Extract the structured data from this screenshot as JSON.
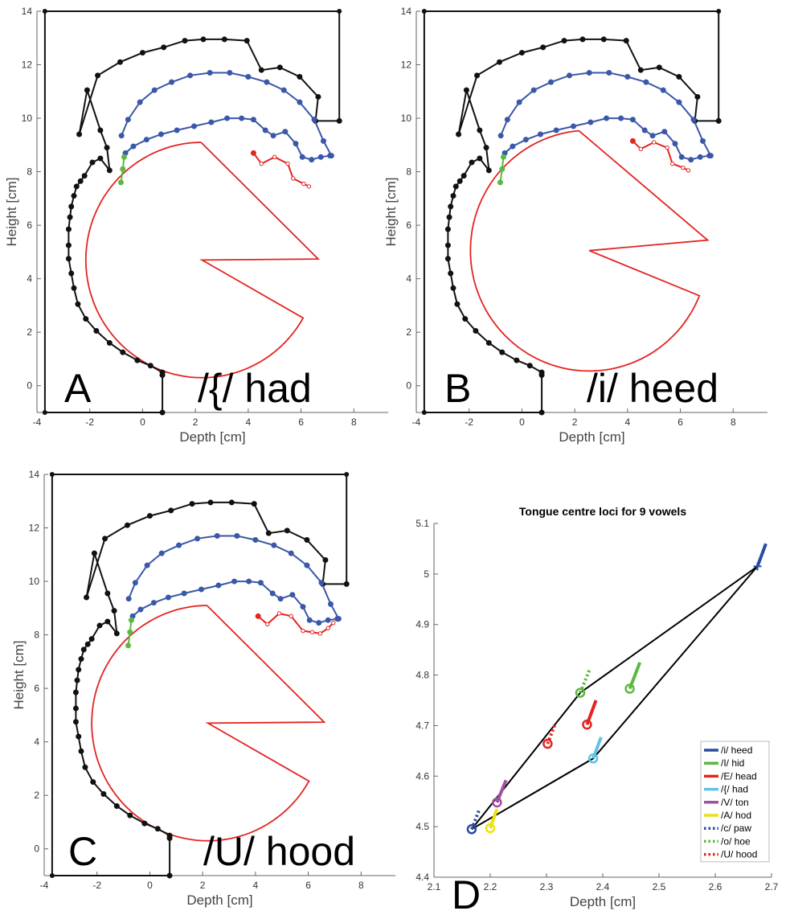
{
  "chart_data": [
    {
      "type": "line",
      "panel_letter": "A",
      "vowel_label": "/{/ had",
      "xlabel": "Depth [cm]",
      "ylabel": "Height [cm]",
      "xlim": [
        -4,
        9.3
      ],
      "ylim": [
        -1,
        14
      ],
      "xticks": [
        "-4",
        "-2",
        "0",
        "2",
        "4",
        "6",
        "8"
      ],
      "yticks": [
        "0",
        "2",
        "4",
        "6",
        "8",
        "10",
        "12",
        "14"
      ],
      "grid": false,
      "colors": {
        "outline": "#111111",
        "palate": "#3a57a8",
        "tongue": "#e32420",
        "larynx": "#5bb840"
      },
      "series": [
        {
          "role": "vocal-tract-outline",
          "color": "#111111",
          "markers": true,
          "x": [
            0.75,
            0.75,
            0.3,
            -0.2,
            -0.75,
            -1.25,
            -1.75,
            -2.15,
            -2.45,
            -2.6,
            -2.7,
            -2.8,
            -2.8,
            -2.8,
            -2.75,
            -2.7,
            -2.6,
            -2.5,
            -2.35,
            -2.2,
            -1.9,
            -1.6,
            -1.25,
            -1.35,
            -1.6,
            -2.1,
            -2.4,
            -1.7,
            -0.85,
            0,
            0.8,
            1.6,
            2.3,
            3.1,
            3.95,
            4.5,
            5.2,
            5.95,
            6.65,
            6.55,
            7.45,
            7.45,
            7.45,
            -3.7,
            -3.7,
            0.75,
            0.75
          ],
          "y": [
            0.4,
            0.5,
            0.75,
            0.95,
            1.25,
            1.6,
            2.05,
            2.5,
            3.05,
            3.65,
            4.2,
            4.75,
            5.25,
            5.85,
            6.3,
            6.7,
            7.1,
            7.45,
            7.65,
            7.85,
            8.35,
            8.5,
            8.05,
            8.9,
            9.55,
            11.05,
            9.4,
            11.6,
            12.1,
            12.45,
            12.65,
            12.9,
            12.95,
            12.95,
            12.9,
            11.8,
            11.9,
            11.55,
            10.8,
            9.9,
            9.9,
            9.9,
            14,
            14,
            -1,
            -1,
            0.4
          ]
        },
        {
          "role": "palate-upper",
          "color": "#3a57a8",
          "markers": true,
          "x": [
            -0.8,
            -0.55,
            -0.1,
            0.45,
            1.1,
            1.8,
            2.55,
            3.3,
            4,
            4.7,
            5.35,
            5.95,
            6.5,
            6.85,
            7.15
          ],
          "y": [
            9.35,
            9.95,
            10.6,
            11.05,
            11.35,
            11.6,
            11.7,
            11.7,
            11.55,
            11.35,
            11.05,
            10.6,
            9.95,
            9.15,
            8.6
          ]
        },
        {
          "role": "palate-lower",
          "color": "#3a57a8",
          "markers": true,
          "x": [
            -0.65,
            -0.35,
            0.15,
            0.7,
            1.3,
            1.95,
            2.6,
            3.2,
            3.75,
            4.2,
            4.65,
            4.95,
            5.4,
            5.8,
            6.05,
            6.4,
            6.75,
            7.1
          ],
          "y": [
            8.7,
            8.95,
            9.2,
            9.4,
            9.55,
            9.7,
            9.85,
            10,
            10,
            9.95,
            9.55,
            9.35,
            9.5,
            9.05,
            8.55,
            8.45,
            8.55,
            8.6
          ]
        },
        {
          "role": "tongue-lip",
          "color": "#e32420",
          "markers": true,
          "x": [
            4.2,
            4.5,
            5,
            5.5,
            5.7,
            6.1,
            6.3
          ],
          "y": [
            8.7,
            8.3,
            8.55,
            8.3,
            7.75,
            7.55,
            7.45
          ]
        },
        {
          "role": "larynx",
          "color": "#5bb840",
          "markers": true,
          "x": [
            -0.7,
            -0.75,
            -0.82
          ],
          "y": [
            8.55,
            8.1,
            7.6
          ]
        }
      ],
      "tongue_arc": {
        "center": [
          2.25,
          4.7
        ],
        "radius": 4.4,
        "start_deg": 0.5,
        "span_deg": 90,
        "sweep_deg": 240
      }
    },
    {
      "type": "line",
      "panel_letter": "B",
      "vowel_label": "/i/ heed",
      "xlabel": "Depth [cm]",
      "ylabel": "Height [cm]",
      "xlim": [
        -4,
        9.3
      ],
      "ylim": [
        -1,
        14
      ],
      "xticks": [
        "-4",
        "-2",
        "0",
        "2",
        "4",
        "6",
        "8"
      ],
      "yticks": [
        "0",
        "2",
        "4",
        "6",
        "8",
        "10",
        "12",
        "14"
      ],
      "grid": false,
      "series": [
        {
          "role": "vocal-tract-outline",
          "color": "#111111",
          "markers": true,
          "x": [
            0.75,
            0.75,
            0.3,
            -0.2,
            -0.75,
            -1.25,
            -1.75,
            -2.15,
            -2.45,
            -2.6,
            -2.7,
            -2.8,
            -2.8,
            -2.8,
            -2.75,
            -2.7,
            -2.6,
            -2.5,
            -2.35,
            -2.2,
            -1.9,
            -1.6,
            -1.25,
            -1.35,
            -1.6,
            -2.1,
            -2.4,
            -1.7,
            -0.85,
            0,
            0.8,
            1.6,
            2.3,
            3.1,
            3.95,
            4.5,
            5.2,
            5.95,
            6.65,
            6.55,
            7.45,
            7.45,
            7.45,
            -3.7,
            -3.7,
            0.75,
            0.75
          ],
          "y": [
            0.4,
            0.5,
            0.75,
            0.95,
            1.25,
            1.6,
            2.05,
            2.5,
            3.05,
            3.65,
            4.2,
            4.75,
            5.25,
            5.85,
            6.3,
            6.7,
            7.1,
            7.45,
            7.65,
            7.85,
            8.35,
            8.5,
            8.05,
            8.9,
            9.55,
            11.05,
            9.4,
            11.6,
            12.1,
            12.45,
            12.65,
            12.9,
            12.95,
            12.95,
            12.9,
            11.8,
            11.9,
            11.55,
            10.8,
            9.9,
            9.9,
            9.9,
            14,
            14,
            -1,
            -1,
            0.4
          ]
        },
        {
          "role": "palate-upper",
          "color": "#3a57a8",
          "markers": true,
          "x": [
            -0.8,
            -0.55,
            -0.1,
            0.45,
            1.1,
            1.8,
            2.55,
            3.3,
            4,
            4.7,
            5.35,
            5.95,
            6.5,
            6.85,
            7.15
          ],
          "y": [
            9.35,
            9.95,
            10.6,
            11.05,
            11.35,
            11.6,
            11.7,
            11.7,
            11.55,
            11.35,
            11.05,
            10.6,
            9.95,
            9.15,
            8.6
          ]
        },
        {
          "role": "palate-lower",
          "color": "#3a57a8",
          "markers": true,
          "x": [
            -0.65,
            -0.35,
            0.15,
            0.7,
            1.3,
            1.95,
            2.6,
            3.2,
            3.75,
            4.2,
            4.65,
            4.95,
            5.4,
            5.8,
            6.05,
            6.4,
            6.75,
            7.1
          ],
          "y": [
            8.7,
            8.95,
            9.2,
            9.4,
            9.55,
            9.7,
            9.85,
            10,
            10,
            9.95,
            9.55,
            9.35,
            9.5,
            9.05,
            8.55,
            8.45,
            8.55,
            8.6
          ]
        },
        {
          "role": "tongue-lip",
          "color": "#e32420",
          "markers": true,
          "x": [
            4.2,
            4.5,
            5,
            5.5,
            5.7,
            6.1,
            6.3
          ],
          "y": [
            9.15,
            8.85,
            9.1,
            8.9,
            8.3,
            8.15,
            8.05
          ]
        },
        {
          "role": "larynx",
          "color": "#5bb840",
          "markers": true,
          "x": [
            -0.7,
            -0.75,
            -0.82
          ],
          "y": [
            8.55,
            8.1,
            7.6
          ]
        }
      ],
      "tongue_arc": {
        "center": [
          2.55,
          5.05
        ],
        "radius": 4.5,
        "start_deg": 5,
        "span_deg": 90,
        "sweep_deg": 243
      }
    },
    {
      "type": "line",
      "panel_letter": "C",
      "vowel_label": "/U/ hood",
      "xlabel": "Depth [cm]",
      "ylabel": "Height [cm]",
      "xlim": [
        -4,
        9.3
      ],
      "ylim": [
        -1,
        14
      ],
      "xticks": [
        "-4",
        "-2",
        "0",
        "2",
        "4",
        "6",
        "8"
      ],
      "yticks": [
        "0",
        "2",
        "4",
        "6",
        "8",
        "10",
        "12",
        "14"
      ],
      "grid": false,
      "series": [
        {
          "role": "vocal-tract-outline",
          "color": "#111111",
          "markers": true,
          "x": [
            0.75,
            0.75,
            0.3,
            -0.2,
            -0.75,
            -1.25,
            -1.75,
            -2.15,
            -2.45,
            -2.6,
            -2.7,
            -2.8,
            -2.8,
            -2.8,
            -2.75,
            -2.7,
            -2.6,
            -2.5,
            -2.35,
            -2.2,
            -1.9,
            -1.6,
            -1.25,
            -1.35,
            -1.6,
            -2.1,
            -2.4,
            -1.7,
            -0.85,
            0,
            0.8,
            1.6,
            2.3,
            3.1,
            3.95,
            4.5,
            5.2,
            5.95,
            6.65,
            6.55,
            7.45,
            7.45,
            7.45,
            -3.7,
            -3.7,
            0.75,
            0.75
          ],
          "y": [
            0.4,
            0.5,
            0.75,
            0.95,
            1.25,
            1.6,
            2.05,
            2.5,
            3.05,
            3.65,
            4.2,
            4.75,
            5.25,
            5.85,
            6.3,
            6.7,
            7.1,
            7.45,
            7.65,
            7.85,
            8.35,
            8.5,
            8.05,
            8.9,
            9.55,
            11.05,
            9.4,
            11.6,
            12.1,
            12.45,
            12.65,
            12.9,
            12.95,
            12.95,
            12.9,
            11.8,
            11.9,
            11.55,
            10.8,
            9.9,
            9.9,
            9.9,
            14,
            14,
            -1,
            -1,
            0.4
          ]
        },
        {
          "role": "palate-upper",
          "color": "#3a57a8",
          "markers": true,
          "x": [
            -0.8,
            -0.55,
            -0.1,
            0.45,
            1.1,
            1.8,
            2.55,
            3.3,
            4,
            4.7,
            5.35,
            5.95,
            6.5,
            6.85,
            7.15
          ],
          "y": [
            9.35,
            9.95,
            10.6,
            11.05,
            11.35,
            11.6,
            11.7,
            11.7,
            11.55,
            11.35,
            11.05,
            10.6,
            9.95,
            9.15,
            8.6
          ]
        },
        {
          "role": "palate-lower",
          "color": "#3a57a8",
          "markers": true,
          "x": [
            -0.65,
            -0.35,
            0.15,
            0.7,
            1.3,
            1.95,
            2.6,
            3.2,
            3.75,
            4.2,
            4.65,
            4.95,
            5.4,
            5.8,
            6.05,
            6.4,
            6.75,
            7.1
          ],
          "y": [
            8.7,
            8.95,
            9.2,
            9.4,
            9.55,
            9.7,
            9.85,
            10,
            10,
            9.95,
            9.55,
            9.35,
            9.5,
            9.05,
            8.55,
            8.45,
            8.55,
            8.6
          ]
        },
        {
          "role": "tongue-lip",
          "color": "#e32420",
          "markers": true,
          "x": [
            4.1,
            4.45,
            4.9,
            5.35,
            5.8,
            6.15,
            6.45,
            6.75,
            6.95
          ],
          "y": [
            8.7,
            8.4,
            8.8,
            8.7,
            8.15,
            8.1,
            8.05,
            8.25,
            8.45
          ]
        },
        {
          "role": "larynx",
          "color": "#5bb840",
          "markers": true,
          "x": [
            -0.7,
            -0.75,
            -0.82
          ],
          "y": [
            8.55,
            8.1,
            7.6
          ]
        }
      ],
      "tongue_arc": {
        "center": [
          2.2,
          4.7
        ],
        "radius": 4.4,
        "start_deg": 0.5,
        "span_deg": 90,
        "sweep_deg": 240
      }
    },
    {
      "type": "scatter",
      "panel_letter": "D",
      "title": "Tongue centre loci for 9 vowels",
      "xlabel": "Depth [cm]",
      "ylabel": "",
      "xlim": [
        2.1,
        2.7
      ],
      "ylim": [
        4.4,
        5.1
      ],
      "xticks": [
        "2.1",
        "2.2",
        "2.3",
        "2.4",
        "2.5",
        "2.6",
        "2.7"
      ],
      "yticks": [
        "4.4",
        "4.5",
        "4.6",
        "4.7",
        "4.8",
        "4.9",
        "5",
        "5.1"
      ],
      "grid": false,
      "legend_position": "bottom-right",
      "outline_polygon": {
        "x": [
          2.167,
          2.36,
          2.675,
          2.383,
          2.167
        ],
        "y": [
          4.495,
          4.765,
          5.015,
          4.635,
          4.495
        ],
        "color": "#000000"
      },
      "series": [
        {
          "name": "/i/ heed",
          "color": "#2b4ba3",
          "style": "solid",
          "marker": "plus",
          "x": 2.675,
          "y": 5.015,
          "tail_x": 2.69,
          "tail_y": 5.06
        },
        {
          "name": "/I/ hid",
          "color": "#5bb840",
          "style": "solid",
          "marker": "circle",
          "x": 2.448,
          "y": 4.773,
          "tail_x": 2.466,
          "tail_y": 4.825
        },
        {
          "name": "/E/ head",
          "color": "#e32420",
          "style": "solid",
          "marker": "circle",
          "x": 2.372,
          "y": 4.702,
          "tail_x": 2.388,
          "tail_y": 4.75
        },
        {
          "name": "/{/ had",
          "color": "#5ec4e6",
          "style": "solid",
          "marker": "circle",
          "x": 2.383,
          "y": 4.635,
          "tail_x": 2.397,
          "tail_y": 4.677
        },
        {
          "name": "/V/ ton",
          "color": "#a14fa0",
          "style": "solid",
          "marker": "circle",
          "x": 2.212,
          "y": 4.548,
          "tail_x": 2.228,
          "tail_y": 4.592
        },
        {
          "name": "/A/ hod",
          "color": "#ece20e",
          "style": "solid",
          "marker": "circle",
          "x": 2.2,
          "y": 4.497,
          "tail_x": 2.212,
          "tail_y": 4.535
        },
        {
          "name": "/c/ paw",
          "color": "#2b4ba3",
          "style": "dotted",
          "marker": "circle",
          "x": 2.167,
          "y": 4.495,
          "tail_x": 2.181,
          "tail_y": 4.535
        },
        {
          "name": "/o/ hoe",
          "color": "#5bb840",
          "style": "dotted",
          "marker": "circle",
          "x": 2.36,
          "y": 4.765,
          "tail_x": 2.377,
          "tail_y": 4.812
        },
        {
          "name": "/U/ hood",
          "color": "#e32420",
          "style": "dotted",
          "marker": "circle",
          "x": 2.302,
          "y": 4.664,
          "tail_x": 2.316,
          "tail_y": 4.705
        }
      ]
    }
  ]
}
